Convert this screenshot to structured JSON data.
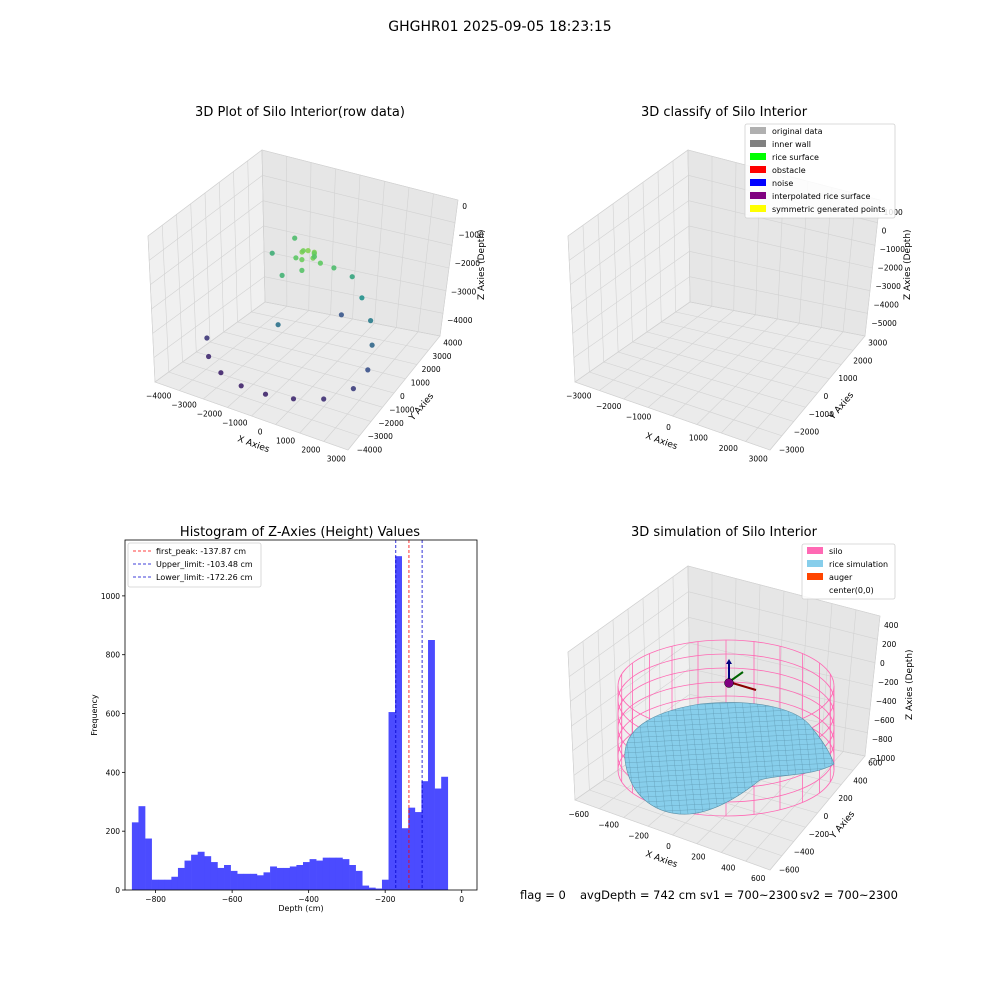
{
  "figure_title": "GHGHR01 2025-09-05 18:23:15",
  "footer": {
    "flag": "flag = 0",
    "avg_depth": "avgDepth = 742 cm",
    "sv1": "sv1 = 700~2300",
    "sv2": "sv2 = 700~2300"
  },
  "colors": {
    "hist_bar": "#4b4bff",
    "first_peak_line": "#ff0000",
    "limit_line": "#0000cc",
    "silo": "#ff69b4",
    "rice_simulation": "#87ceeb",
    "auger": "#ff4500",
    "viridis_low": "#440154",
    "viridis_mid": "#21918c",
    "viridis_high": "#fde725"
  },
  "chart_data": [
    {
      "type": "scatter",
      "projection": "3d",
      "title": "3D Plot of Silo Interior(row data)",
      "xlabel": "X Axies",
      "ylabel": "Y Axies",
      "zlabel": "Z Axies (Depth)",
      "x_ticks": [
        "−4000",
        "−3000",
        "−2000",
        "−1000",
        "0",
        "1000",
        "2000",
        "3000"
      ],
      "y_ticks": [
        "4000",
        "3000",
        "2000",
        "1000",
        "0",
        "−1000",
        "−2000",
        "−3000",
        "−4000"
      ],
      "z_ticks": [
        "0",
        "−1000",
        "−2000",
        "−3000",
        "−4000"
      ],
      "xlim": [
        -4000,
        3500
      ],
      "ylim": [
        -4000,
        4000
      ],
      "zlim": [
        -4800,
        0
      ],
      "colormap": "viridis",
      "description_points": [
        {
          "x": 0,
          "y": 0,
          "z": -900
        },
        {
          "x": 200,
          "y": 100,
          "z": -950
        },
        {
          "x": -200,
          "y": -100,
          "z": -950
        },
        {
          "x": 300,
          "y": -200,
          "z": -1000
        },
        {
          "x": -300,
          "y": 200,
          "z": -1050
        },
        {
          "x": 100,
          "y": 300,
          "z": -1100
        },
        {
          "x": -100,
          "y": -300,
          "z": -1100
        },
        {
          "x": 500,
          "y": 0,
          "z": -1200
        },
        {
          "x": -500,
          "y": 0,
          "z": -1250
        },
        {
          "x": 0,
          "y": 500,
          "z": -1300
        },
        {
          "x": 0,
          "y": -500,
          "z": -1350
        },
        {
          "x": 800,
          "y": 500,
          "z": -1500
        },
        {
          "x": -800,
          "y": -500,
          "z": -1700
        },
        {
          "x": 1200,
          "y": 1200,
          "z": -2000
        },
        {
          "x": 1800,
          "y": 800,
          "z": -2400
        },
        {
          "x": 2400,
          "y": 300,
          "z": -2800
        },
        {
          "x": 2800,
          "y": -400,
          "z": -3200
        },
        {
          "x": 3000,
          "y": -1200,
          "z": -3600
        },
        {
          "x": 2800,
          "y": -2000,
          "z": -3900
        },
        {
          "x": 2000,
          "y": -2800,
          "z": -4100
        },
        {
          "x": 1000,
          "y": -3200,
          "z": -4200
        },
        {
          "x": 0,
          "y": -3400,
          "z": -4250
        },
        {
          "x": -1000,
          "y": -3300,
          "z": -4300
        },
        {
          "x": -2000,
          "y": -2900,
          "z": -4300
        },
        {
          "x": -2800,
          "y": -2300,
          "z": -4200
        },
        {
          "x": -3300,
          "y": -1500,
          "z": -4000
        },
        {
          "x": -2000,
          "y": 1000,
          "z": -1800
        },
        {
          "x": -1500,
          "y": 1800,
          "z": -1500
        },
        {
          "x": 600,
          "y": 1500,
          "z": -3500
        },
        {
          "x": -600,
          "y": -1200,
          "z": -3000
        }
      ]
    },
    {
      "type": "scatter",
      "projection": "3d",
      "title": "3D classify of Silo Interior",
      "xlabel": "X Axies",
      "ylabel": "Y Axies",
      "zlabel": "Z Axies (Depth)",
      "x_ticks": [
        "−3000",
        "−2000",
        "−1000",
        "0",
        "1000",
        "2000",
        "3000"
      ],
      "y_ticks": [
        "3000",
        "2000",
        "1000",
        "0",
        "−1000",
        "−2000",
        "−3000"
      ],
      "z_ticks": [
        "1000",
        "0",
        "−1000",
        "−2000",
        "−3000",
        "−4000",
        "−5000"
      ],
      "xlim": [
        -3500,
        3500
      ],
      "ylim": [
        -3500,
        3500
      ],
      "zlim": [
        -5500,
        1200
      ],
      "legend_position": "upper right",
      "legend": [
        {
          "label": "original data",
          "color": "#b0b0b0"
        },
        {
          "label": "inner wall",
          "color": "#808080"
        },
        {
          "label": "rice surface",
          "color": "#00ff00"
        },
        {
          "label": "obstacle",
          "color": "#ff0000"
        },
        {
          "label": "noise",
          "color": "#0000ff"
        },
        {
          "label": "interpolated rice surface",
          "color": "#800080"
        },
        {
          "label": "symmetric generated points",
          "color": "#ffff00"
        }
      ]
    },
    {
      "type": "bar",
      "title": "Histogram of Z-Axies (Height) Values",
      "xlabel": "Depth (cm)",
      "ylabel": "Frequency",
      "xlim": [
        -880,
        40
      ],
      "ylim": [
        0,
        1190
      ],
      "x_ticks": [
        -800,
        -600,
        -400,
        -200,
        0
      ],
      "x_tick_labels": [
        "−800",
        "−600",
        "−400",
        "−200",
        "0"
      ],
      "y_ticks": [
        0,
        200,
        400,
        600,
        800,
        1000
      ],
      "y_tick_labels": [
        "0",
        "200",
        "400",
        "600",
        "800",
        "1000"
      ],
      "bin_start": -862,
      "bin_width": 17.2,
      "values": [
        230,
        285,
        175,
        35,
        35,
        35,
        45,
        75,
        100,
        120,
        130,
        115,
        95,
        75,
        85,
        65,
        55,
        55,
        55,
        50,
        60,
        80,
        75,
        75,
        80,
        85,
        95,
        105,
        100,
        110,
        110,
        110,
        105,
        85,
        65,
        15,
        8,
        5,
        35,
        605,
        1135,
        210,
        280,
        265,
        370,
        850,
        345,
        385
      ],
      "vlines": [
        {
          "label": "first_peak: -137.87 cm",
          "x": -137.87,
          "color": "#ff0000"
        },
        {
          "label": "Upper_limit: -103.48 cm",
          "x": -103.48,
          "color": "#0000cc"
        },
        {
          "label": "Lower_limit: -172.26 cm",
          "x": -172.26,
          "color": "#0000cc"
        }
      ],
      "legend_position": "upper left"
    },
    {
      "type": "surface",
      "projection": "3d",
      "title": "3D simulation of Silo Interior",
      "xlabel": "X Axies",
      "ylabel": "Y Axies",
      "zlabel": "Z Axies (Depth)",
      "x_ticks": [
        "−600",
        "−400",
        "−200",
        "0",
        "200",
        "400",
        "600"
      ],
      "y_ticks": [
        "600",
        "400",
        "200",
        "0",
        "−200",
        "−400",
        "−600"
      ],
      "z_ticks": [
        "400",
        "200",
        "0",
        "−200",
        "−400",
        "−600",
        "−800",
        "−1000"
      ],
      "xlim": [
        -700,
        700
      ],
      "ylim": [
        -700,
        700
      ],
      "zlim": [
        -1000,
        450
      ],
      "legend_position": "upper right",
      "legend": [
        {
          "label": "silo",
          "color": "#ff69b4"
        },
        {
          "label": "rice simulation",
          "color": "#87ceeb"
        },
        {
          "label": "auger",
          "color": "#ff4500"
        },
        {
          "label": "center(0,0)",
          "color": ""
        }
      ]
    }
  ]
}
